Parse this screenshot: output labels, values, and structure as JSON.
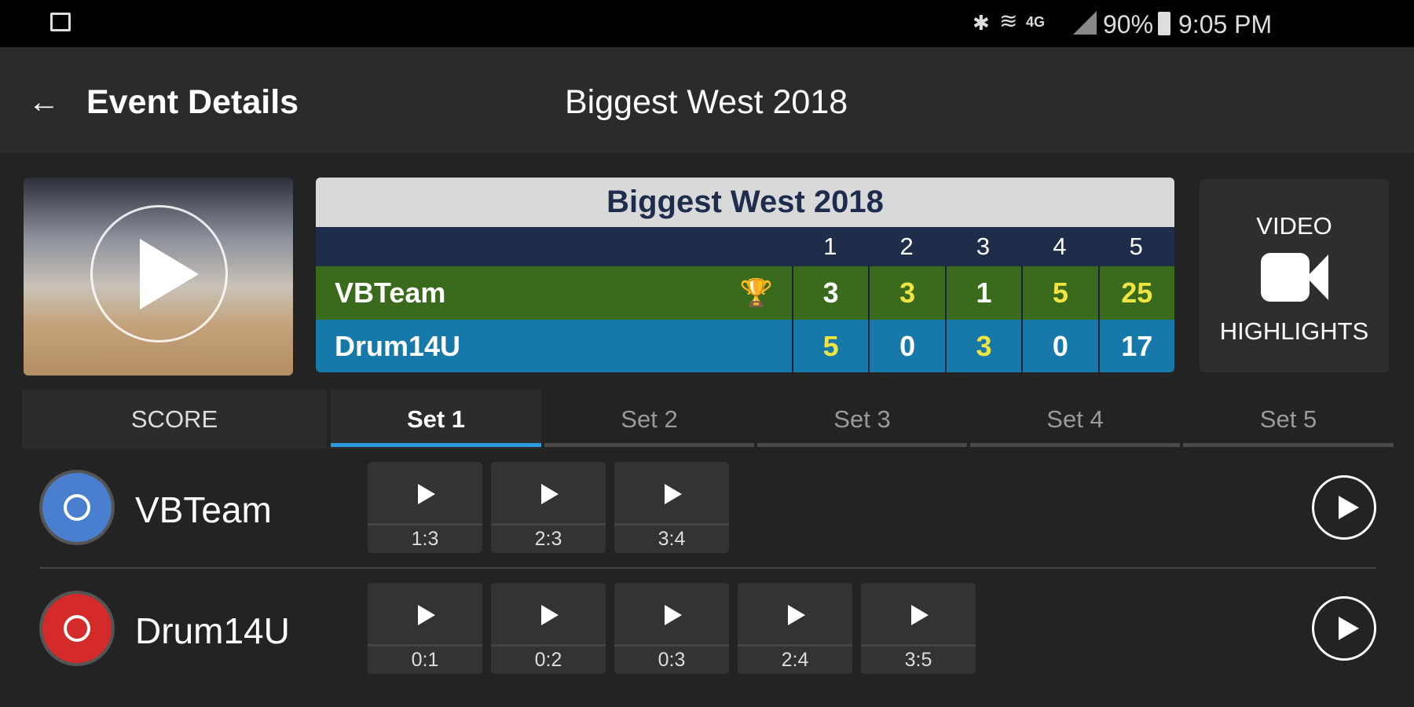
{
  "status_bar": {
    "battery": "90%",
    "time": "9:05 PM",
    "icons": [
      "image-icon",
      "bluetooth-icon",
      "wifi-icon",
      "4g-icon",
      "signal-icon",
      "battery-icon"
    ]
  },
  "app_bar": {
    "title": "Event Details",
    "event_name": "Biggest West 2018"
  },
  "scoreboard": {
    "title": "Biggest West 2018",
    "set_numbers": [
      "1",
      "2",
      "3",
      "4",
      "5"
    ],
    "teams": [
      {
        "name": "VBTeam",
        "winner": true,
        "scores": [
          "3",
          "3",
          "1",
          "5",
          "25"
        ],
        "color": "#3a6b1c"
      },
      {
        "name": "Drum14U",
        "winner": false,
        "scores": [
          "5",
          "0",
          "3",
          "0",
          "17"
        ],
        "color": "#1679a9"
      }
    ],
    "highlight_color": "#f0e442"
  },
  "video_highlights": {
    "line1": "VIDEO",
    "line2": "HIGHLIGHTS"
  },
  "tabs": {
    "score": "SCORE",
    "sets": [
      "Set 1",
      "Set 2",
      "Set 3",
      "Set 4",
      "Set 5"
    ],
    "active": 0,
    "accent": "#2b9be0"
  },
  "rows": [
    {
      "team": "VBTeam",
      "avatar_color": "#4a7fcf",
      "clips": [
        "1:3",
        "2:3",
        "3:4"
      ]
    },
    {
      "team": "Drum14U",
      "avatar_color": "#d42a2a",
      "clips": [
        "0:1",
        "0:2",
        "0:3",
        "2:4",
        "3:5"
      ]
    }
  ]
}
